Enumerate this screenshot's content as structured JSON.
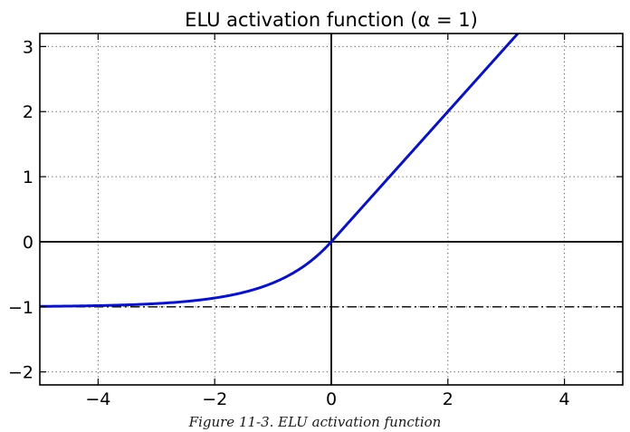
{
  "chart_data": {
    "type": "line",
    "title": "ELU activation function (α = 1)",
    "xlabel": "",
    "ylabel": "",
    "xlim": [
      -5,
      5
    ],
    "ylim": [
      -2.2,
      3.2
    ],
    "x_ticks": [
      -4,
      -2,
      0,
      2,
      4
    ],
    "x_tick_labels": [
      "−4",
      "−2",
      "0",
      "2",
      "4"
    ],
    "y_ticks": [
      -2,
      -1,
      0,
      1,
      2,
      3
    ],
    "y_tick_labels": [
      "−2",
      "−1",
      "0",
      "1",
      "2",
      "3"
    ],
    "grid": true,
    "legend": "none",
    "series": [
      {
        "function": "elu",
        "alpha": 1,
        "x": [
          -5,
          -4.5,
          -4,
          -3.5,
          -3,
          -2.5,
          -2,
          -1.5,
          -1,
          -0.75,
          -0.5,
          -0.25,
          0,
          0.5,
          1,
          1.5,
          2,
          2.5,
          3,
          3.2
        ],
        "y": [
          -0.993,
          -0.989,
          -0.982,
          -0.97,
          -0.95,
          -0.918,
          -0.865,
          -0.777,
          -0.632,
          -0.528,
          -0.393,
          -0.221,
          0,
          0.5,
          1,
          1.5,
          2,
          2.5,
          3,
          3.2
        ],
        "color": "#0a14b8"
      }
    ],
    "reference_lines": [
      {
        "orientation": "horizontal",
        "value": 0,
        "style": "solid",
        "color": "#000000"
      },
      {
        "orientation": "vertical",
        "value": 0,
        "style": "solid",
        "color": "#000000"
      },
      {
        "orientation": "horizontal",
        "value": -1,
        "style": "dash-dot",
        "color": "#000000"
      }
    ]
  },
  "caption": "Figure 11-3. ELU activation function"
}
